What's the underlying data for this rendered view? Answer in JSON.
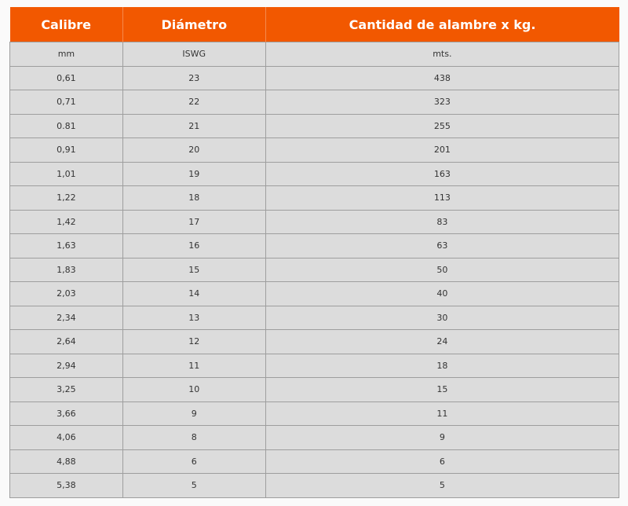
{
  "table": {
    "headers": [
      "Calibre",
      "Diámetro",
      "Cantidad de alambre x kg."
    ],
    "units": [
      "mm",
      "ISWG",
      "mts."
    ],
    "rows": [
      [
        "0,61",
        "23",
        "438"
      ],
      [
        "0,71",
        "22",
        "323"
      ],
      [
        "0.81",
        "21",
        "255"
      ],
      [
        "0,91",
        "20",
        "201"
      ],
      [
        "1,01",
        "19",
        "163"
      ],
      [
        "1,22",
        "18",
        "113"
      ],
      [
        "1,42",
        "17",
        "83"
      ],
      [
        "1,63",
        "16",
        "63"
      ],
      [
        "1,83",
        "15",
        "50"
      ],
      [
        "2,03",
        "14",
        "40"
      ],
      [
        "2,34",
        "13",
        "30"
      ],
      [
        "2,64",
        "12",
        "24"
      ],
      [
        "2,94",
        "11",
        "18"
      ],
      [
        "3,25",
        "10",
        "15"
      ],
      [
        "3,66",
        "9",
        "11"
      ],
      [
        "4,06",
        "8",
        "9"
      ],
      [
        "4,88",
        "6",
        "6"
      ],
      [
        "5,38",
        "5",
        "5"
      ]
    ]
  },
  "colors": {
    "header_bg": "#f25800",
    "cell_bg": "#dcdcdc"
  }
}
